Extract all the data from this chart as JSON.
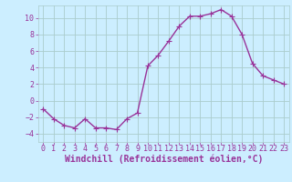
{
  "x": [
    0,
    1,
    2,
    3,
    4,
    5,
    6,
    7,
    8,
    9,
    10,
    11,
    12,
    13,
    14,
    15,
    16,
    17,
    18,
    19,
    20,
    21,
    22,
    23
  ],
  "y": [
    -1,
    -2.2,
    -3,
    -3.3,
    -2.2,
    -3.3,
    -3.3,
    -3.5,
    -2.2,
    -1.5,
    4.2,
    5.5,
    7.2,
    9.0,
    10.2,
    10.2,
    10.5,
    11.0,
    10.2,
    8.0,
    4.5,
    3.0,
    2.5,
    2.0
  ],
  "line_color": "#993399",
  "marker": "+",
  "marker_size": 4,
  "bg_color": "#cceeff",
  "grid_color": "#aacccc",
  "xlabel": "Windchill (Refroidissement éolien,°C)",
  "ylabel": "",
  "ylim": [
    -5,
    11.5
  ],
  "xlim": [
    -0.5,
    23.5
  ],
  "yticks": [
    -4,
    -2,
    0,
    2,
    4,
    6,
    8,
    10
  ],
  "xticks": [
    0,
    1,
    2,
    3,
    4,
    5,
    6,
    7,
    8,
    9,
    10,
    11,
    12,
    13,
    14,
    15,
    16,
    17,
    18,
    19,
    20,
    21,
    22,
    23
  ],
  "tick_color": "#993399",
  "label_color": "#993399",
  "label_fontsize": 7,
  "tick_fontsize": 6,
  "line_width": 1.0
}
